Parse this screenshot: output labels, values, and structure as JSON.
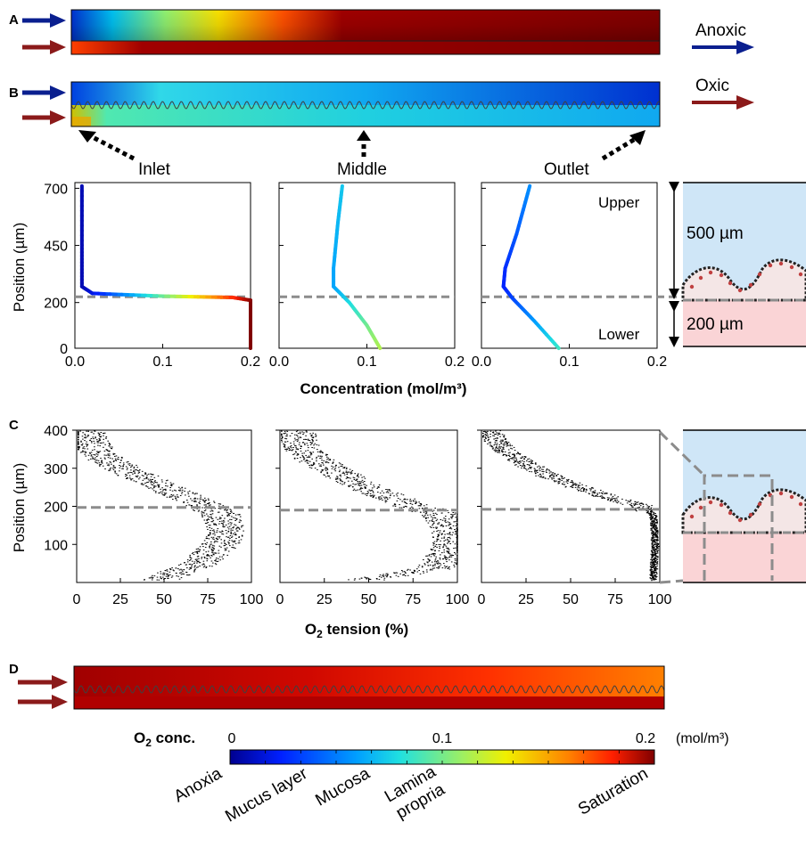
{
  "panel_letters": [
    "A",
    "B",
    "C",
    "D"
  ],
  "flow_labels": {
    "anoxic": "Anoxic",
    "oxic": "Oxic"
  },
  "locations": [
    "Inlet",
    "Middle",
    "Outlet"
  ],
  "schematic": {
    "upper": "Upper",
    "lower": "Lower",
    "upper_thickness": "500 µm",
    "lower_thickness": "200 µm"
  },
  "panel_B_plots": {
    "ylabel": "Position (µm)",
    "xlabel": "Concentration (mol/m³)",
    "yticks": [
      "0",
      "200",
      "450",
      "700"
    ],
    "xticks": [
      "0.0",
      "0.1",
      "0.2"
    ],
    "interface_um": 225
  },
  "panel_C_plots": {
    "ylabel": "Position (µm)",
    "xlabel_main": "O",
    "xlabel_sub": "2",
    "xlabel_rest": " tension (%)",
    "yticks": [
      "100",
      "200",
      "300",
      "400"
    ],
    "xticks": [
      "0",
      "25",
      "50",
      "75",
      "100"
    ],
    "interfaces_um": [
      197,
      190,
      192
    ]
  },
  "colorbar": {
    "label_main": "O",
    "label_sub": "2",
    "label_rest": " conc.",
    "ticks": [
      "0",
      "0.1",
      "0.2"
    ],
    "unit": "(mol/m³)",
    "categories": [
      "Anoxia",
      "Mucus layer",
      "Mucosa",
      "Lamina",
      "propria",
      "Saturation"
    ]
  },
  "colors": {
    "anoxic_arrow": "#0a1f8f",
    "oxic_arrow": "#8b1a1a",
    "dash": "#8c8c8c",
    "upper_fill": "#cfe6f7",
    "lower_fill": "#fad4d6"
  },
  "chart_data": [
    {
      "type": "line",
      "x_label": "Concentration (mol/m³)",
      "y_label": "Position (µm)",
      "xlim": [
        0,
        0.2
      ],
      "ylim": [
        0,
        725
      ],
      "series": [
        {
          "name": "Inlet",
          "x": [
            0.2,
            0.2,
            0.2,
            0.18,
            0.1,
            0.02,
            0.008,
            0.008,
            0.008
          ],
          "y": [
            0,
            100,
            210,
            222,
            228,
            240,
            270,
            450,
            710
          ]
        },
        {
          "name": "Middle",
          "x": [
            0.115,
            0.1,
            0.08,
            0.062,
            0.062,
            0.067,
            0.072
          ],
          "y": [
            0,
            100,
            200,
            270,
            350,
            550,
            710
          ]
        },
        {
          "name": "Outlet",
          "x": [
            0.088,
            0.06,
            0.035,
            0.025,
            0.027,
            0.04,
            0.055
          ],
          "y": [
            0,
            120,
            220,
            270,
            350,
            500,
            710
          ]
        }
      ]
    },
    {
      "type": "scatter",
      "x_label": "O2 tension (%)",
      "y_label": "Position (µm)",
      "xlim": [
        0,
        100
      ],
      "ylim": [
        0,
        400
      ],
      "series": [
        {
          "name": "Inlet",
          "x": [
            48,
            70,
            82,
            85,
            82,
            70,
            50,
            30,
            18,
            8,
            5
          ],
          "y": [
            10,
            50,
            100,
            140,
            180,
            210,
            250,
            290,
            320,
            360,
            400
          ]
        },
        {
          "name": "Middle",
          "x": [
            50,
            88,
            97,
            95,
            90,
            70,
            48,
            32,
            20,
            12,
            8
          ],
          "y": [
            10,
            40,
            100,
            150,
            180,
            210,
            250,
            290,
            320,
            360,
            400
          ]
        },
        {
          "name": "Outlet",
          "x": [
            96,
            97,
            96,
            90,
            75,
            55,
            38,
            25,
            15,
            8,
            4
          ],
          "y": [
            10,
            100,
            180,
            200,
            220,
            250,
            280,
            310,
            340,
            370,
            400
          ]
        }
      ]
    }
  ]
}
